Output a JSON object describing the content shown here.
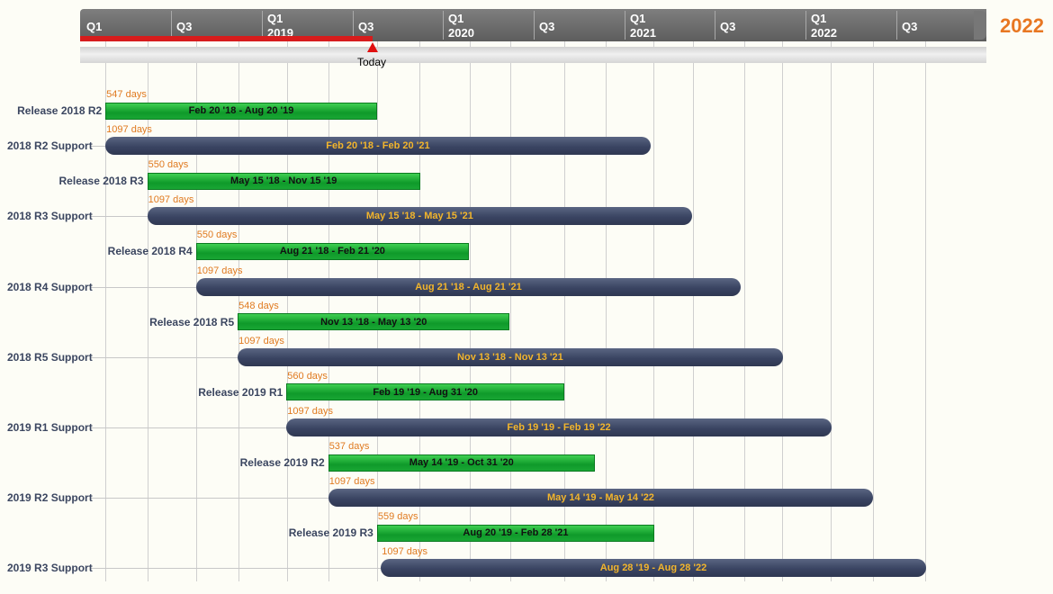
{
  "header": {
    "year_label": "2022",
    "quarters": [
      {
        "q": "Q1",
        "year": ""
      },
      {
        "q": "Q3",
        "year": ""
      },
      {
        "q": "Q1",
        "year": "2019"
      },
      {
        "q": "Q3",
        "year": ""
      },
      {
        "q": "Q1",
        "year": "2020"
      },
      {
        "q": "Q3",
        "year": ""
      },
      {
        "q": "Q1",
        "year": "2021"
      },
      {
        "q": "Q3",
        "year": ""
      },
      {
        "q": "Q1",
        "year": "2022"
      },
      {
        "q": "Q3",
        "year": ""
      }
    ],
    "today_label": "Today",
    "today_date": "2019-08-25"
  },
  "colors": {
    "release": "#1aa836",
    "support": "#3a4462",
    "support_text": "#f2b52c",
    "duration_text": "#e07a20",
    "today": "#e01010",
    "year_accent": "#e87722"
  },
  "rows": [
    {
      "label": "Release 2018 R2",
      "kind": "release",
      "start": "2018-02-20",
      "end": "2019-08-20",
      "duration": "547 days",
      "range": "Feb 20 '18 - Aug 20 '19"
    },
    {
      "label": "2018 R2 Support",
      "kind": "support",
      "start": "2018-02-20",
      "end": "2021-02-20",
      "duration": "1097 days",
      "range": "Feb 20 '18 - Feb 20 '21"
    },
    {
      "label": "Release 2018 R3",
      "kind": "release",
      "start": "2018-05-15",
      "end": "2019-11-15",
      "duration": "550 days",
      "range": "May 15 '18 - Nov 15 '19"
    },
    {
      "label": "2018 R3 Support",
      "kind": "support",
      "start": "2018-05-15",
      "end": "2021-05-15",
      "duration": "1097 days",
      "range": "May 15 '18 - May 15 '21"
    },
    {
      "label": "Release 2018 R4",
      "kind": "release",
      "start": "2018-08-21",
      "end": "2020-02-21",
      "duration": "550 days",
      "range": "Aug 21 '18 - Feb 21 '20"
    },
    {
      "label": "2018 R4 Support",
      "kind": "support",
      "start": "2018-08-21",
      "end": "2021-08-21",
      "duration": "1097 days",
      "range": "Aug 21 '18 - Aug 21 '21"
    },
    {
      "label": "Release 2018 R5",
      "kind": "release",
      "start": "2018-11-13",
      "end": "2020-05-13",
      "duration": "548 days",
      "range": "Nov 13 '18 - May 13 '20"
    },
    {
      "label": "2018 R5 Support",
      "kind": "support",
      "start": "2018-11-13",
      "end": "2021-11-13",
      "duration": "1097 days",
      "range": "Nov 13 '18 - Nov 13 '21"
    },
    {
      "label": "Release 2019 R1",
      "kind": "release",
      "start": "2019-02-19",
      "end": "2020-08-31",
      "duration": "560 days",
      "range": "Feb 19 '19 - Aug 31 '20"
    },
    {
      "label": "2019 R1 Support",
      "kind": "support",
      "start": "2019-02-19",
      "end": "2022-02-19",
      "duration": "1097 days",
      "range": "Feb 19 '19 - Feb 19 '22"
    },
    {
      "label": "Release 2019 R2",
      "kind": "release",
      "start": "2019-05-14",
      "end": "2020-10-31",
      "duration": "537 days",
      "range": "May 14 '19 - Oct 31 '20"
    },
    {
      "label": "2019 R2 Support",
      "kind": "support",
      "start": "2019-05-14",
      "end": "2022-05-14",
      "duration": "1097 days",
      "range": "May 14 '19 - May 14 '22"
    },
    {
      "label": "Release 2019 R3",
      "kind": "release",
      "start": "2019-08-20",
      "end": "2021-02-28",
      "duration": "559 days",
      "range": "Aug 20 '19 - Feb 28 '21"
    },
    {
      "label": "2019 R3 Support",
      "kind": "support",
      "start": "2019-08-28",
      "end": "2022-08-28",
      "duration": "1097 days",
      "range": "Aug 28 '19 - Aug 28 '22"
    }
  ]
}
